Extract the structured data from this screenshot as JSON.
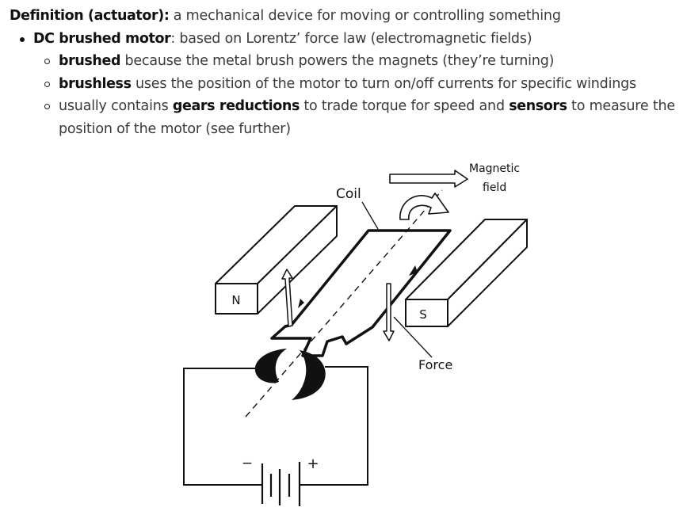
{
  "definition": {
    "term": "Definition (actuator):",
    "text": " a mechanical device for moving or controlling something"
  },
  "bullet": {
    "term": "DC brushed motor",
    "text": ": based on Lorentz’ force law (electromagnetic fields)"
  },
  "sub_bullets": [
    {
      "parts": [
        {
          "b": "brushed"
        },
        {
          "t": " because the metal brush powers the magnets (they’re turning)"
        }
      ]
    },
    {
      "parts": [
        {
          "b": "brushless"
        },
        {
          "t": " uses the position of the motor to turn on/off currents for specific windings"
        }
      ]
    },
    {
      "parts": [
        {
          "t": "usually contains "
        },
        {
          "b": "gears reductions"
        },
        {
          "t": " to trade torque for speed and "
        },
        {
          "b": "sensors"
        },
        {
          "t": " to measure the"
        }
      ],
      "continuation": "position of the motor (see further)"
    }
  ],
  "diagram": {
    "coil_label": "Coil",
    "magnetic_label_1": "Magnetic",
    "magnetic_label_2": "field",
    "force_label": "Force",
    "north_label": "N",
    "south_label": "S",
    "minus_sign": "−",
    "plus_sign": "+"
  }
}
